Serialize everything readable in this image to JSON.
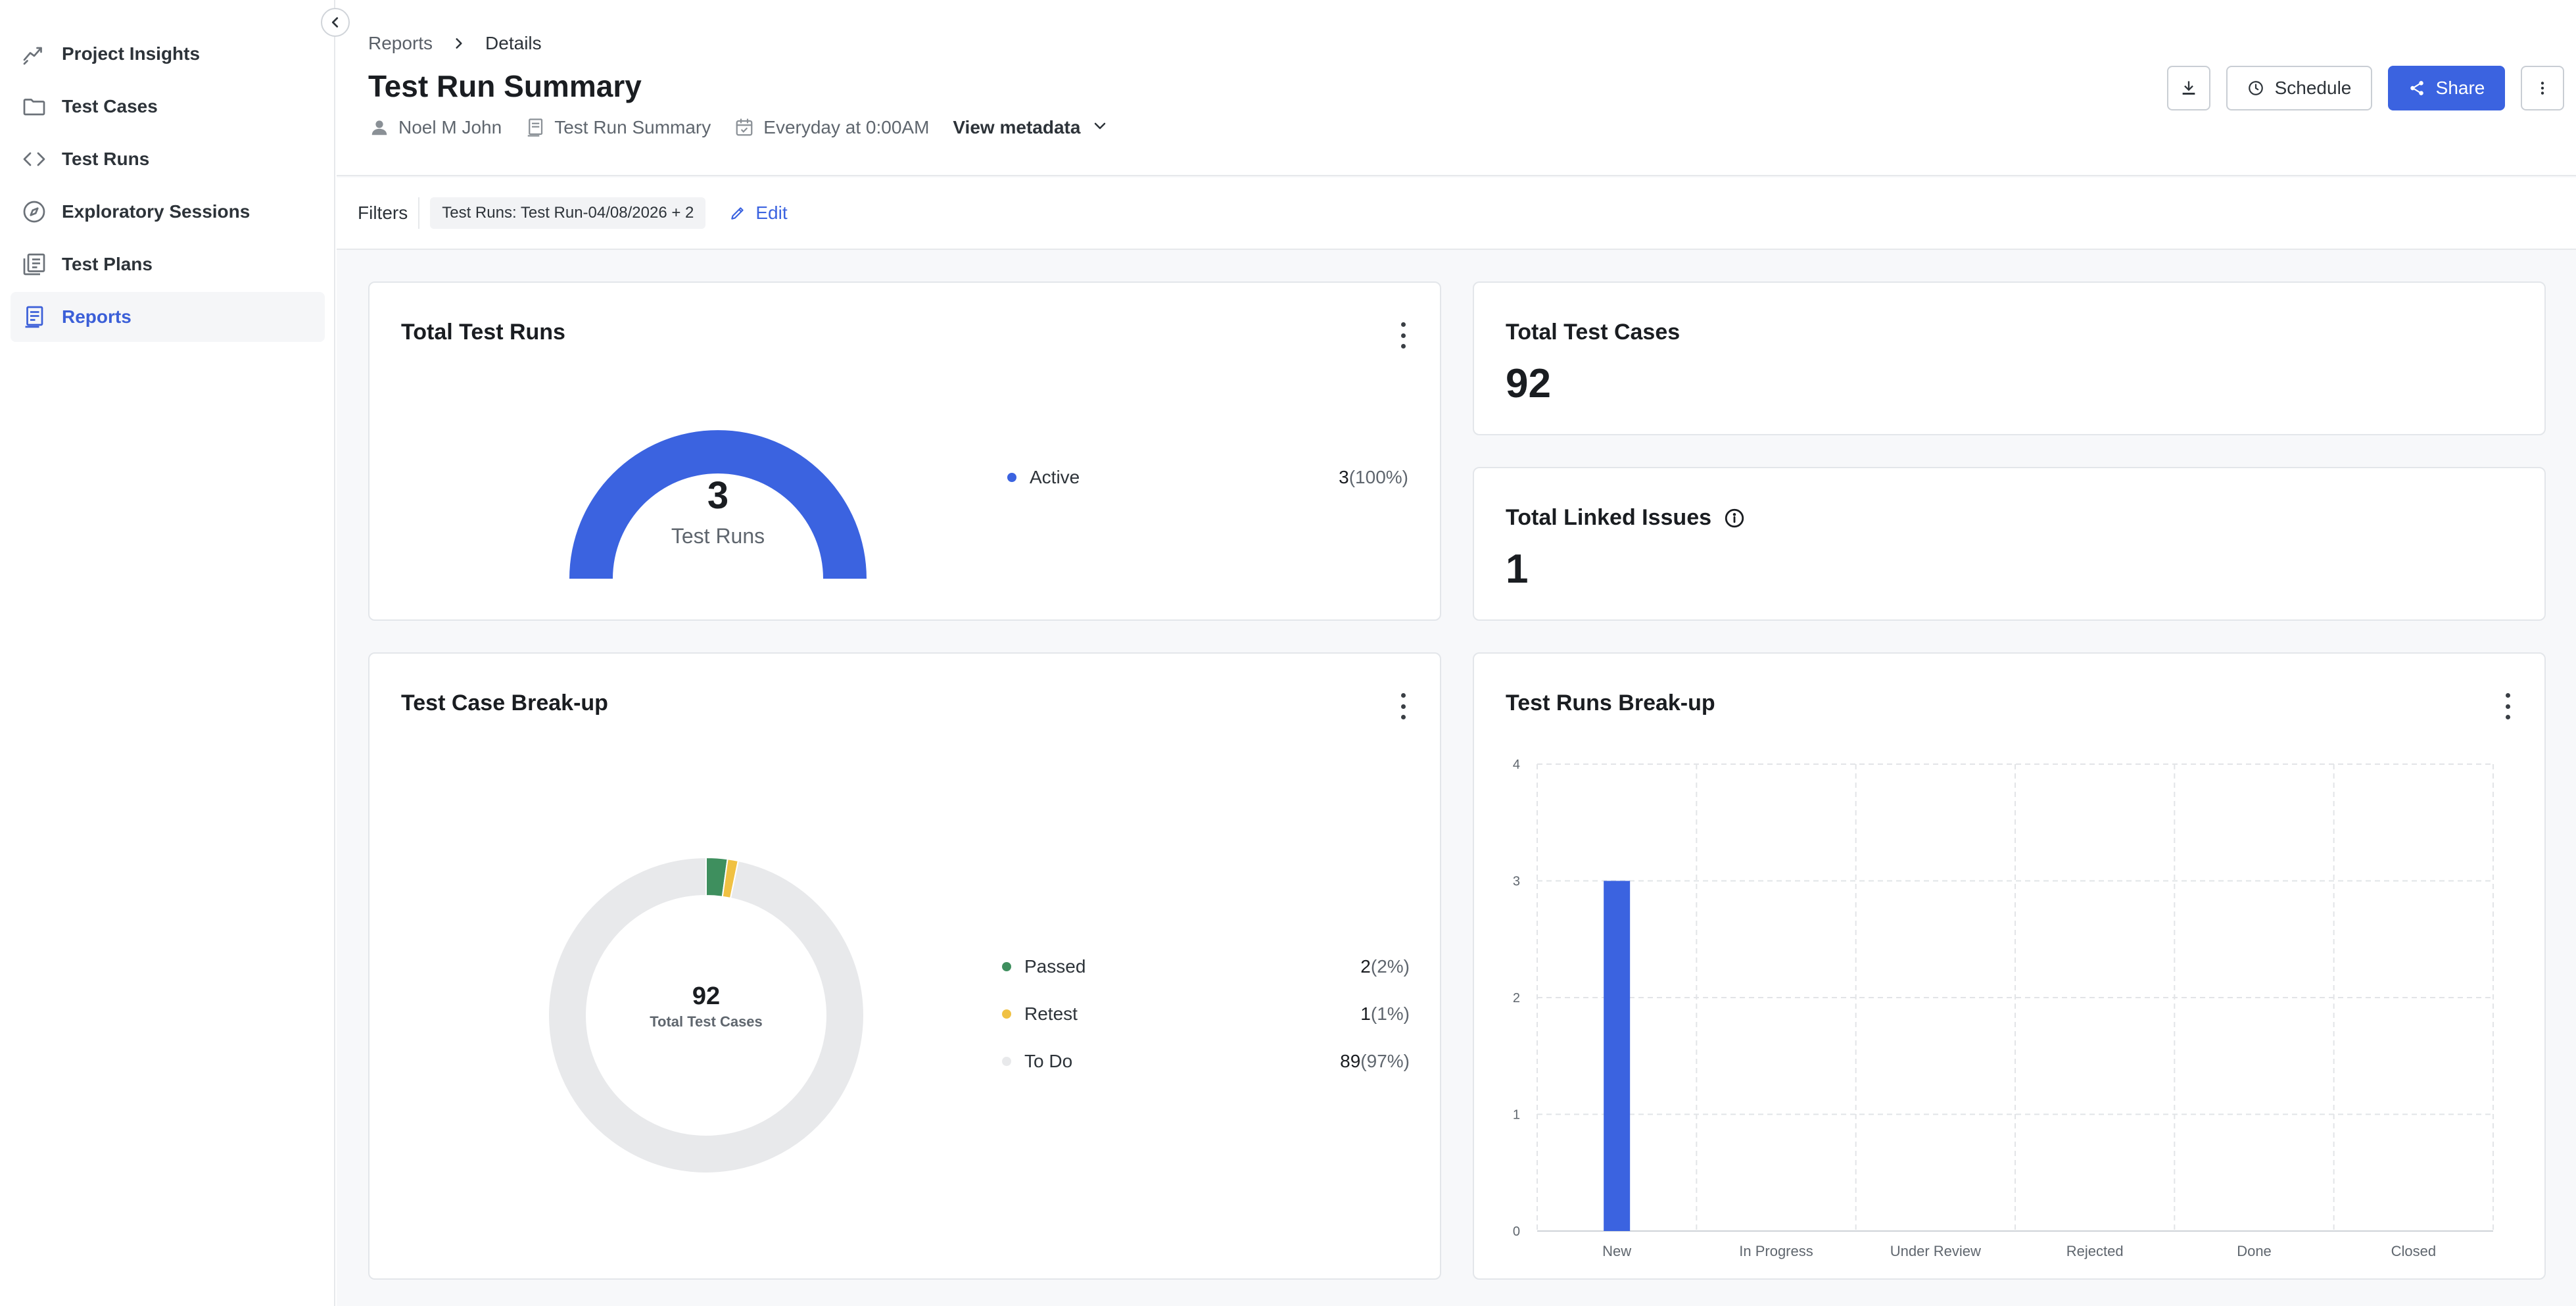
{
  "sidebar": {
    "items": [
      {
        "label": "Project Insights",
        "icon": "trend-icon",
        "active": false
      },
      {
        "label": "Test Cases",
        "icon": "folder-icon",
        "active": false
      },
      {
        "label": "Test Runs",
        "icon": "code-icon",
        "active": false
      },
      {
        "label": "Exploratory Sessions",
        "icon": "compass-icon",
        "active": false
      },
      {
        "label": "Test Plans",
        "icon": "plans-icon",
        "active": false
      },
      {
        "label": "Reports",
        "icon": "report-icon",
        "active": true
      }
    ]
  },
  "header": {
    "breadcrumb": [
      "Reports",
      "Details"
    ],
    "title": "Test Run Summary",
    "owner": "Noel M John",
    "report_type": "Test Run Summary",
    "schedule": "Everyday at 0:00AM",
    "view_metadata": "View metadata",
    "schedule_button": "Schedule",
    "share_button": "Share"
  },
  "filters": {
    "label": "Filters",
    "chip": "Test Runs: Test Run-04/08/2026 + 2",
    "edit": "Edit"
  },
  "colors": {
    "accent": "#3b63e0",
    "passed": "#3e8f5e",
    "retest": "#f0c143",
    "todo": "#e8e9eb"
  },
  "cards": {
    "total_test_runs": {
      "title": "Total Test Runs",
      "value": "3",
      "subtitle": "Test Runs",
      "legend": [
        {
          "label": "Active",
          "value": "3",
          "pct": "(100%)"
        }
      ]
    },
    "total_test_cases": {
      "title": "Total Test Cases",
      "value": "92"
    },
    "total_linked_issues": {
      "title": "Total Linked Issues",
      "value": "1"
    },
    "test_case_breakup": {
      "title": "Test Case Break-up",
      "total": "92",
      "total_label": "Total Test Cases",
      "legend": [
        {
          "label": "Passed",
          "value": "2",
          "pct": "(2%)"
        },
        {
          "label": "Retest",
          "value": "1",
          "pct": "(1%)"
        },
        {
          "label": "To Do",
          "value": "89",
          "pct": "(97%)"
        }
      ]
    },
    "test_runs_breakup": {
      "title": "Test Runs Break-up"
    }
  },
  "chart_data": [
    {
      "type": "pie",
      "title": "Total Test Runs",
      "categories": [
        "Active"
      ],
      "values": [
        3
      ]
    },
    {
      "type": "pie",
      "title": "Test Case Break-up",
      "categories": [
        "Passed",
        "Retest",
        "To Do"
      ],
      "values": [
        2,
        1,
        89
      ]
    },
    {
      "type": "bar",
      "title": "Test Runs Break-up",
      "categories": [
        "New",
        "In Progress",
        "Under Review",
        "Rejected",
        "Done",
        "Closed"
      ],
      "values": [
        3,
        0,
        0,
        0,
        0,
        0
      ],
      "ylim": [
        0,
        4
      ],
      "yticks": [
        "0",
        "1",
        "2",
        "3",
        "4"
      ],
      "grid": true
    }
  ]
}
